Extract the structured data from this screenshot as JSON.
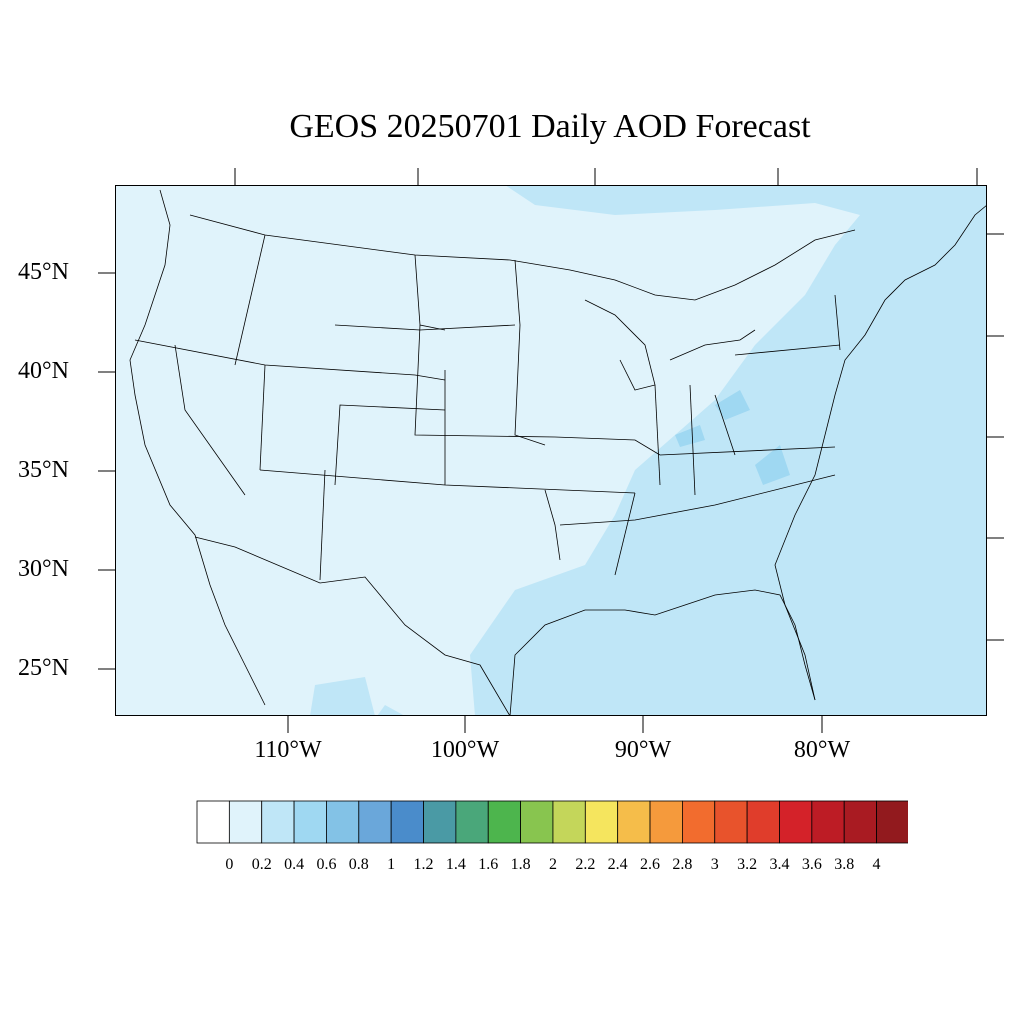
{
  "title": "GEOS 20250701 Daily AOD Forecast",
  "latitude_labels": [
    "45°N",
    "40°N",
    "35°N",
    "30°N",
    "25°N"
  ],
  "longitude_labels": [
    "110°W",
    "100°W",
    "90°W",
    "80°W"
  ],
  "colorbar": {
    "levels": [
      "0",
      "0.2",
      "0.4",
      "0.6",
      "0.8",
      "1",
      "1.2",
      "1.4",
      "1.6",
      "1.8",
      "2",
      "2.2",
      "2.4",
      "2.6",
      "2.8",
      "3",
      "3.2",
      "3.4",
      "3.6",
      "3.8",
      "4"
    ],
    "colors": [
      "#ffffff",
      "#e0f3fb",
      "#bfe6f7",
      "#9fd8f2",
      "#83c2e6",
      "#6aa7da",
      "#4a8ccb",
      "#4a9aa5",
      "#4aa77a",
      "#4db54d",
      "#88c54f",
      "#c4d65a",
      "#f5e55e",
      "#f5bd4a",
      "#f59a3c",
      "#f26c2e",
      "#e8532c",
      "#e03d2b",
      "#d42229",
      "#bd1c25",
      "#a91b22",
      "#921a1e"
    ]
  },
  "map": {
    "background_color": "#e0f3fb",
    "elevated_aod_color": "#bfe6f7",
    "highest_aod_color": "#9fd8f2"
  }
}
